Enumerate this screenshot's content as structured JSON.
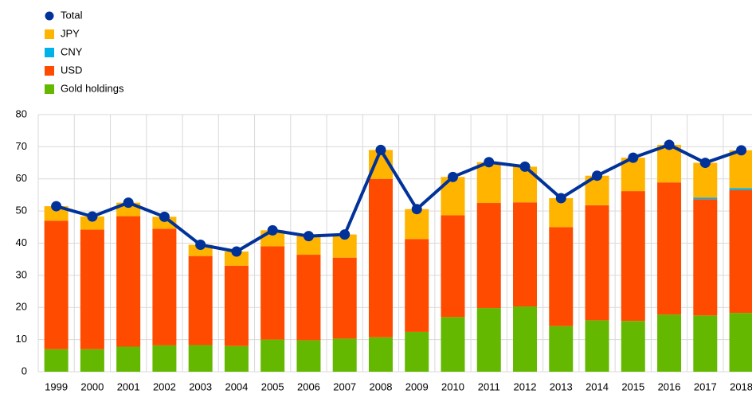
{
  "chart_data": {
    "type": "bar",
    "stacked": true,
    "categories": [
      "1999",
      "2000",
      "2001",
      "2002",
      "2003",
      "2004",
      "2005",
      "2006",
      "2007",
      "2008",
      "2009",
      "2010",
      "2011",
      "2012",
      "2013",
      "2014",
      "2015",
      "2016",
      "2017",
      "2018"
    ],
    "series": [
      {
        "name": "Total",
        "type": "line",
        "color": "#003299",
        "values": [
          51.5,
          48.3,
          52.6,
          48.2,
          39.5,
          37.4,
          44,
          42.2,
          42.7,
          69,
          50.6,
          60.6,
          65.2,
          63.8,
          54,
          61,
          66.6,
          70.6,
          65,
          68.9
        ]
      },
      {
        "name": "JPY",
        "color": "#ffb400",
        "values": [
          4.5,
          4.1,
          4.2,
          3.7,
          3.5,
          4.4,
          5,
          5.8,
          7.2,
          9,
          9.3,
          11.9,
          12.7,
          11.1,
          9,
          9.2,
          10.4,
          11.7,
          10.8,
          11.8
        ]
      },
      {
        "name": "CNY",
        "color": "#00b1ea",
        "values": [
          0,
          0,
          0,
          0,
          0,
          0,
          0,
          0,
          0,
          0,
          0,
          0,
          0,
          0,
          0,
          0,
          0,
          0,
          0.5,
          0.6
        ]
      },
      {
        "name": "USD",
        "color": "#ff4b00",
        "values": [
          40,
          37.2,
          40.6,
          36.3,
          27.7,
          25,
          29,
          26.6,
          25.2,
          49.3,
          28.9,
          31.7,
          32.7,
          32.4,
          30.8,
          35.8,
          40.4,
          41.1,
          36.2,
          38.2
        ]
      },
      {
        "name": "Gold holdings",
        "color": "#65b800",
        "values": [
          7,
          7,
          7.8,
          8.2,
          8.3,
          8,
          10,
          9.8,
          10.3,
          10.7,
          12.4,
          17,
          19.8,
          20.3,
          14.2,
          16,
          15.8,
          17.8,
          17.5,
          18.3
        ]
      }
    ],
    "ylim": [
      0,
      80
    ],
    "yticks": [
      0,
      10,
      20,
      30,
      40,
      50,
      60,
      70,
      80
    ],
    "grid": true
  }
}
